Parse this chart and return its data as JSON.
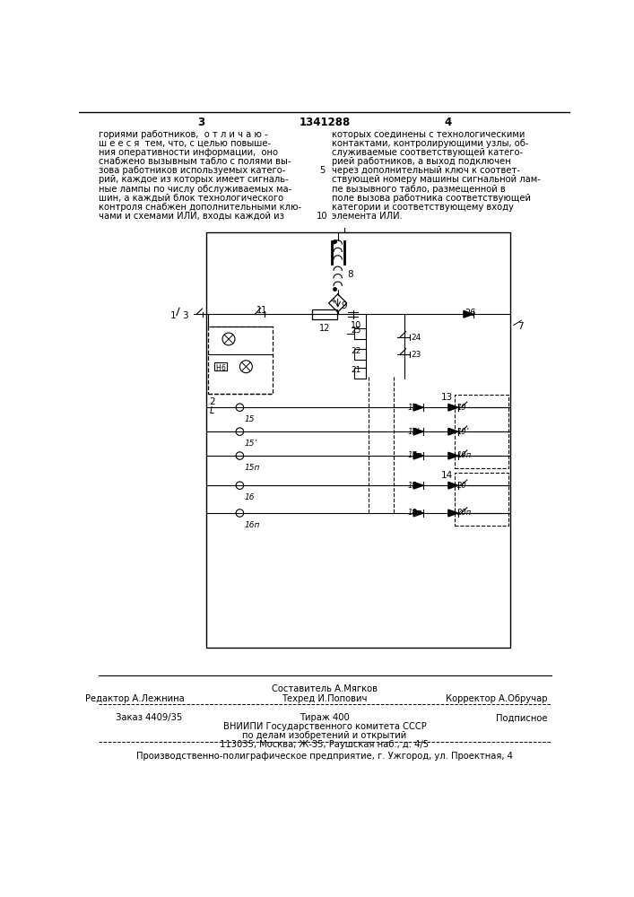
{
  "page_number_left": "3",
  "page_number_center": "1341288",
  "page_number_right": "4",
  "col_left_text": [
    "гориями работников,  о т л и ч а ю -",
    "ш е е с я  тем, что, с целью повыше-",
    "ния оперативности информации,  оно",
    "снабжено вызывным табло с полями вы-",
    "зова работников используемых катего-",
    "рий, каждое из которых имеет сигналь-",
    "ные лампы по числу обслуживаемых ма-",
    "шин, а каждый блок технологического",
    "контроля снабжен дополнительными клю-",
    "чами и схемами ИЛИ, входы каждой из"
  ],
  "col_right_text": [
    "которых соединены с технологическими",
    "контактами, контролирующими узлы, об-",
    "служиваемые соответствующей катего-",
    "рией работников, а выход подключен",
    "через дополнительный ключ к соответ-",
    "ствующей номеру машины сигнальной лам-",
    "пе вызывного табло, размещенной в",
    "поле вызова работника соответствующей",
    "категории и соответствующему входу",
    "элемента ИЛИ."
  ],
  "line_number_5": "5",
  "line_number_10": "10",
  "footer_sestavitel_label": "Составитель А.Мягков",
  "footer_editor_label": "Редактор А.Лежнина",
  "footer_tehred_label": "Техред И.Попович",
  "footer_korrektor_label": "Корректор А.Обручар",
  "footer_zakaz": "Заказ 4409/35",
  "footer_tirazh": "Тираж 400",
  "footer_podpisnoe": "Подписное",
  "footer_vniiipi": "ВНИИПИ Государственного комитета СССР",
  "footer_po_delam": "по делам изобретений и открытий",
  "footer_address": "113035, Москва, Ж-35, Раушская наб., д. 4/5",
  "footer_proizv": "Производственно-полиграфическое предприятие, г. Ужгород, ул. Проектная, 4",
  "bg_color": "#ffffff"
}
